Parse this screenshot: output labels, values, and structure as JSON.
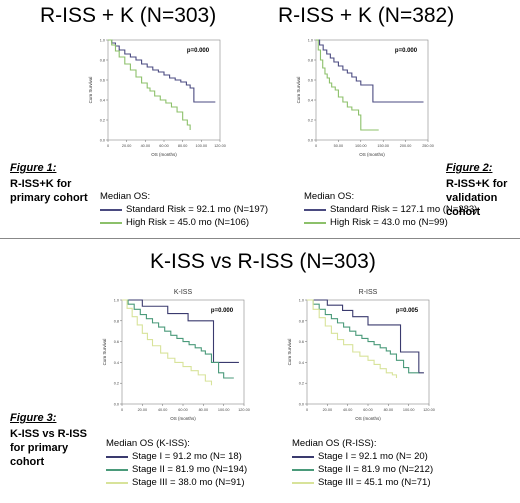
{
  "titles": {
    "top_left": "R-ISS + K (N=303)",
    "top_right": "R-ISS + K (N=382)",
    "bottom": "K-ISS vs R-ISS (N=303)"
  },
  "figures": {
    "fig1": {
      "label": "Figure 1:",
      "caption": "R-ISS+K for primary cohort"
    },
    "fig2": {
      "label": "Figure 2:",
      "caption": "R-ISS+K for validation cohort"
    },
    "fig3": {
      "label": "Figure 3:",
      "caption": "K-ISS vs R-ISS for primary cohort"
    }
  },
  "colors": {
    "standard": "#4a4a80",
    "high": "#8cc06a",
    "stage1": "#3a3a6e",
    "stage2": "#4a9a7a",
    "stage3": "#d8e39a"
  },
  "chart_data": [
    {
      "id": "fig1",
      "type": "line",
      "title": "",
      "xlabel": "OS (months)",
      "ylabel": "Cum Survival",
      "p_value": "p=0.000",
      "xlim": [
        0,
        120
      ],
      "ylim": [
        0,
        1
      ],
      "x_ticks": [
        "0",
        "20.00",
        "40.00",
        "60.00",
        "80.00",
        "100.00",
        "120.00"
      ],
      "y_ticks": [
        "0.0",
        "0.2",
        "0.4",
        "0.6",
        "0.8",
        "1.0"
      ],
      "legend": {
        "title": "Median OS:",
        "items": [
          "Standard Risk = 92.1 mo (N=197)",
          "High Risk = 45.0 mo (N=106)"
        ]
      },
      "series": [
        {
          "name": "Standard Risk",
          "x": [
            0,
            4,
            8,
            12,
            18,
            24,
            30,
            36,
            42,
            48,
            54,
            60,
            66,
            72,
            78,
            84,
            88,
            92,
            100,
            108,
            115
          ],
          "y": [
            1.0,
            0.97,
            0.94,
            0.9,
            0.86,
            0.83,
            0.8,
            0.76,
            0.73,
            0.7,
            0.68,
            0.65,
            0.62,
            0.6,
            0.58,
            0.55,
            0.52,
            0.38,
            0.38,
            0.38,
            0.38
          ]
        },
        {
          "name": "High Risk",
          "x": [
            0,
            4,
            8,
            12,
            18,
            24,
            30,
            36,
            42,
            45,
            50,
            56,
            62,
            68,
            74,
            80,
            85,
            88
          ],
          "y": [
            1.0,
            0.95,
            0.89,
            0.83,
            0.76,
            0.7,
            0.63,
            0.57,
            0.52,
            0.49,
            0.44,
            0.4,
            0.37,
            0.33,
            0.28,
            0.2,
            0.15,
            0.1
          ]
        }
      ]
    },
    {
      "id": "fig2",
      "type": "line",
      "title": "",
      "xlabel": "OS (months)",
      "ylabel": "Cum Survival",
      "p_value": "p=0.000",
      "xlim": [
        0,
        250
      ],
      "ylim": [
        0,
        1
      ],
      "x_ticks": [
        "0",
        "50.00",
        "100.00",
        "150.00",
        "200.00",
        "250.00"
      ],
      "y_ticks": [
        "0.0",
        "0.2",
        "0.4",
        "0.6",
        "0.8",
        "1.0"
      ],
      "legend": {
        "title": "Median OS:",
        "items": [
          "Standard Risk = 127.1 mo (N=283)",
          "High Risk = 43.0 mo (N=99)"
        ]
      },
      "series": [
        {
          "name": "Standard Risk",
          "x": [
            0,
            8,
            16,
            24,
            32,
            40,
            50,
            60,
            70,
            80,
            90,
            100,
            110,
            120,
            127,
            150,
            180,
            210,
            240
          ],
          "y": [
            1.0,
            0.95,
            0.9,
            0.86,
            0.82,
            0.78,
            0.74,
            0.7,
            0.67,
            0.63,
            0.59,
            0.55,
            0.55,
            0.55,
            0.38,
            0.38,
            0.38,
            0.38,
            0.38
          ]
        },
        {
          "name": "High Risk",
          "x": [
            0,
            5,
            10,
            15,
            20,
            25,
            30,
            35,
            43,
            50,
            60,
            70,
            80,
            95,
            100,
            120,
            140
          ],
          "y": [
            1.0,
            0.9,
            0.8,
            0.72,
            0.66,
            0.62,
            0.57,
            0.53,
            0.5,
            0.43,
            0.38,
            0.33,
            0.3,
            0.25,
            0.1,
            0.1,
            0.1
          ]
        }
      ]
    },
    {
      "id": "fig3-kiss",
      "type": "line",
      "title": "K-ISS",
      "xlabel": "OS (months)",
      "ylabel": "Cum Survival",
      "p_value": "p=0.000",
      "xlim": [
        0,
        120
      ],
      "ylim": [
        0,
        1
      ],
      "x_ticks": [
        "0",
        "20.00",
        "40.00",
        "60.00",
        "80.00",
        "100.00",
        "120.00"
      ],
      "y_ticks": [
        "0.0",
        "0.2",
        "0.4",
        "0.6",
        "0.8",
        "1.0"
      ],
      "legend": {
        "title": "Median OS (K-ISS):",
        "items": [
          "Stage I   = 91.2 mo (N= 18)",
          "Stage II = 81.9 mo (N=194)",
          "Stage III = 38.0 mo (N=91)"
        ]
      },
      "series": [
        {
          "name": "Stage I",
          "x": [
            0,
            10,
            20,
            30,
            40,
            45,
            55,
            65,
            75,
            80,
            85,
            90,
            100,
            115
          ],
          "y": [
            1.0,
            1.0,
            0.94,
            0.94,
            0.94,
            0.87,
            0.87,
            0.8,
            0.8,
            0.8,
            0.8,
            0.4,
            0.4,
            0.4
          ]
        },
        {
          "name": "Stage II",
          "x": [
            0,
            6,
            12,
            18,
            24,
            30,
            36,
            42,
            48,
            54,
            60,
            66,
            72,
            78,
            82,
            88,
            95,
            100,
            110
          ],
          "y": [
            1.0,
            0.96,
            0.91,
            0.86,
            0.82,
            0.78,
            0.74,
            0.7,
            0.66,
            0.63,
            0.6,
            0.57,
            0.54,
            0.51,
            0.48,
            0.4,
            0.3,
            0.25,
            0.25
          ]
        },
        {
          "name": "Stage III",
          "x": [
            0,
            5,
            10,
            15,
            20,
            25,
            30,
            38,
            45,
            52,
            60,
            68,
            75,
            82,
            88
          ],
          "y": [
            1.0,
            0.92,
            0.84,
            0.76,
            0.68,
            0.62,
            0.56,
            0.49,
            0.44,
            0.4,
            0.36,
            0.32,
            0.28,
            0.22,
            0.18
          ]
        }
      ]
    },
    {
      "id": "fig3-riss",
      "type": "line",
      "title": "R-ISS",
      "xlabel": "OS (months)",
      "ylabel": "Cum Survival",
      "p_value": "p=0.005",
      "xlim": [
        0,
        120
      ],
      "ylim": [
        0,
        1
      ],
      "x_ticks": [
        "0",
        "20.00",
        "40.00",
        "60.00",
        "80.00",
        "100.00",
        "120.00"
      ],
      "y_ticks": [
        "0.0",
        "0.2",
        "0.4",
        "0.6",
        "0.8",
        "1.0"
      ],
      "legend": {
        "title": "Median OS (R-ISS):",
        "items": [
          "Stage I   = 92.1 mo (N= 20)",
          "Stage II = 81.9 mo (N=212)",
          "Stage III = 45.1 mo (N=71)"
        ]
      },
      "series": [
        {
          "name": "Stage I",
          "x": [
            0,
            10,
            20,
            30,
            35,
            45,
            55,
            60,
            70,
            80,
            92,
            100,
            110,
            115
          ],
          "y": [
            1.0,
            1.0,
            0.95,
            0.95,
            0.9,
            0.84,
            0.84,
            0.76,
            0.76,
            0.76,
            0.5,
            0.5,
            0.3,
            0.3
          ]
        },
        {
          "name": "Stage II",
          "x": [
            0,
            6,
            12,
            18,
            24,
            30,
            36,
            42,
            48,
            54,
            60,
            66,
            72,
            78,
            82,
            88,
            95,
            100,
            110
          ],
          "y": [
            1.0,
            0.96,
            0.91,
            0.86,
            0.82,
            0.78,
            0.74,
            0.7,
            0.66,
            0.63,
            0.6,
            0.57,
            0.54,
            0.51,
            0.48,
            0.42,
            0.35,
            0.3,
            0.3
          ]
        },
        {
          "name": "Stage III",
          "x": [
            0,
            6,
            12,
            18,
            24,
            30,
            36,
            45,
            52,
            60,
            66,
            72,
            78,
            84,
            88
          ],
          "y": [
            1.0,
            0.91,
            0.83,
            0.75,
            0.68,
            0.62,
            0.57,
            0.5,
            0.46,
            0.42,
            0.38,
            0.34,
            0.3,
            0.28,
            0.25
          ]
        }
      ]
    }
  ]
}
